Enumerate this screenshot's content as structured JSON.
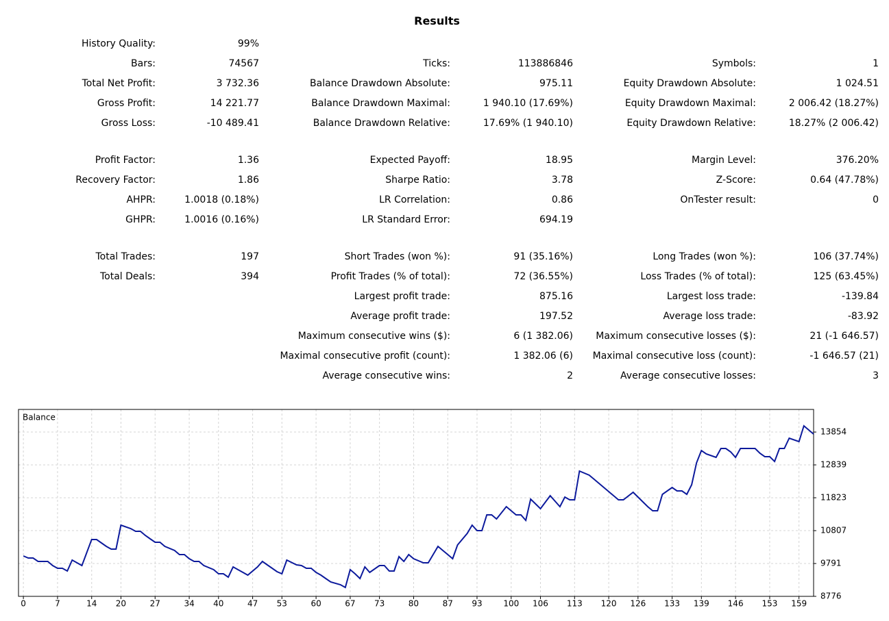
{
  "title": "Results",
  "stats": [
    [
      [
        {
          "label": "History Quality:",
          "value": "99%"
        },
        null,
        null
      ],
      [
        {
          "label": "Bars:",
          "value": "74567"
        },
        {
          "label": "Ticks:",
          "value": "113886846"
        },
        {
          "label": "Symbols:",
          "value": "1"
        }
      ],
      [
        {
          "label": "Total Net Profit:",
          "value": "3 732.36"
        },
        {
          "label": "Balance Drawdown Absolute:",
          "value": "975.11"
        },
        {
          "label": "Equity Drawdown Absolute:",
          "value": "1 024.51"
        }
      ],
      [
        {
          "label": "Gross Profit:",
          "value": "14 221.77"
        },
        {
          "label": "Balance Drawdown Maximal:",
          "value": "1 940.10 (17.69%)"
        },
        {
          "label": "Equity Drawdown Maximal:",
          "value": "2 006.42 (18.27%)"
        }
      ],
      [
        {
          "label": "Gross Loss:",
          "value": "-10 489.41"
        },
        {
          "label": "Balance Drawdown Relative:",
          "value": "17.69% (1 940.10)"
        },
        {
          "label": "Equity Drawdown Relative:",
          "value": "18.27% (2 006.42)"
        }
      ]
    ],
    [
      [
        {
          "label": "Profit Factor:",
          "value": "1.36"
        },
        {
          "label": "Expected Payoff:",
          "value": "18.95"
        },
        {
          "label": "Margin Level:",
          "value": "376.20%"
        }
      ],
      [
        {
          "label": "Recovery Factor:",
          "value": "1.86"
        },
        {
          "label": "Sharpe Ratio:",
          "value": "3.78"
        },
        {
          "label": "Z-Score:",
          "value": "0.64 (47.78%)"
        }
      ],
      [
        {
          "label": "AHPR:",
          "value": "1.0018 (0.18%)"
        },
        {
          "label": "LR Correlation:",
          "value": "0.86"
        },
        {
          "label": "OnTester result:",
          "value": "0"
        }
      ],
      [
        {
          "label": "GHPR:",
          "value": "1.0016 (0.16%)"
        },
        {
          "label": "LR Standard Error:",
          "value": "694.19"
        },
        null
      ]
    ],
    [
      [
        {
          "label": "Total Trades:",
          "value": "197"
        },
        {
          "label": "Short Trades (won %):",
          "value": "91 (35.16%)"
        },
        {
          "label": "Long Trades (won %):",
          "value": "106 (37.74%)"
        }
      ],
      [
        {
          "label": "Total Deals:",
          "value": "394"
        },
        {
          "label": "Profit Trades (% of total):",
          "value": "72 (36.55%)"
        },
        {
          "label": "Loss Trades (% of total):",
          "value": "125 (63.45%)"
        }
      ],
      [
        null,
        {
          "label": "Largest profit trade:",
          "value": "875.16"
        },
        {
          "label": "Largest loss trade:",
          "value": "-139.84"
        }
      ],
      [
        null,
        {
          "label": "Average profit trade:",
          "value": "197.52"
        },
        {
          "label": "Average loss trade:",
          "value": "-83.92"
        }
      ],
      [
        null,
        {
          "label": "Maximum consecutive wins ($):",
          "value": "6 (1 382.06)"
        },
        {
          "label": "Maximum consecutive losses ($):",
          "value": "21 (-1 646.57)"
        }
      ],
      [
        null,
        {
          "label": "Maximal consecutive profit (count):",
          "value": "1 382.06 (6)"
        },
        {
          "label": "Maximal consecutive loss (count):",
          "value": "-1 646.57 (21)"
        }
      ],
      [
        null,
        {
          "label": "Average consecutive wins:",
          "value": "2"
        },
        {
          "label": "Average consecutive losses:",
          "value": "3"
        }
      ]
    ]
  ],
  "chart_data": {
    "type": "line",
    "x": [
      0,
      1,
      2,
      3,
      5,
      6,
      7,
      8,
      9,
      10,
      11,
      12,
      14,
      15,
      16,
      17,
      18,
      19,
      20,
      22,
      23,
      24,
      25,
      26,
      27,
      28,
      29,
      31,
      32,
      33,
      34,
      35,
      36,
      37,
      39,
      40,
      41,
      42,
      43,
      44,
      45,
      46,
      48,
      49,
      50,
      51,
      52,
      53,
      54,
      56,
      57,
      58,
      59,
      60,
      61,
      62,
      63,
      65,
      66,
      67,
      68,
      69,
      70,
      71,
      73,
      74,
      75,
      76,
      77,
      78,
      79,
      80,
      82,
      83,
      84,
      85,
      86,
      87,
      88,
      89,
      91,
      92,
      93,
      94,
      95,
      96,
      97,
      99,
      100,
      101,
      102,
      103,
      104,
      105,
      106,
      108,
      109,
      110,
      111,
      112,
      113,
      114,
      116,
      117,
      118,
      119,
      120,
      121,
      122,
      123,
      125,
      126,
      127,
      128,
      129,
      130,
      131,
      133,
      134,
      135,
      136,
      137,
      138,
      139,
      140,
      142,
      143,
      144,
      145,
      146,
      147,
      148,
      150,
      151,
      152,
      153,
      154,
      155,
      156,
      157,
      159,
      160,
      161,
      162
    ],
    "series": [
      {
        "name": "Balance",
        "color": "#0c1a9c",
        "values": [
          10024,
          9961,
          9961,
          9855,
          9855,
          9728,
          9644,
          9644,
          9559,
          9897,
          9813,
          9728,
          10532,
          10532,
          10426,
          10321,
          10236,
          10236,
          10977,
          10871,
          10786,
          10786,
          10659,
          10553,
          10448,
          10448,
          10321,
          10194,
          10067,
          10067,
          9940,
          9855,
          9855,
          9728,
          9601,
          9474,
          9474,
          9368,
          9686,
          9601,
          9517,
          9432,
          9686,
          9855,
          9749,
          9644,
          9538,
          9474,
          9897,
          9749,
          9728,
          9644,
          9644,
          9517,
          9432,
          9326,
          9220,
          9136,
          9051,
          9601,
          9474,
          9326,
          9686,
          9517,
          9728,
          9728,
          9559,
          9559,
          10003,
          9855,
          10067,
          9940,
          9813,
          9813,
          10067,
          10321,
          10194,
          10067,
          9940,
          10363,
          10723,
          10977,
          10807,
          10807,
          11294,
          11294,
          11167,
          11548,
          11421,
          11294,
          11294,
          11125,
          11781,
          11633,
          11484,
          11886,
          11717,
          11548,
          11844,
          11760,
          11760,
          12648,
          12521,
          12394,
          12267,
          12140,
          12013,
          11886,
          11760,
          11760,
          11992,
          11844,
          11696,
          11548,
          11421,
          11421,
          11929,
          12140,
          12035,
          12035,
          11929,
          12225,
          12902,
          13283,
          13177,
          13071,
          13346,
          13346,
          13241,
          13071,
          13346,
          13346,
          13346,
          13198,
          13092,
          13092,
          12944,
          13346,
          13346,
          13664,
          13558,
          14045,
          13918,
          13791
        ]
      }
    ],
    "xlim": [
      -1,
      162
    ],
    "ylim": [
      8776,
      14553
    ],
    "xticks": [
      0,
      7,
      14,
      20,
      27,
      34,
      40,
      47,
      53,
      60,
      67,
      73,
      80,
      87,
      93,
      100,
      106,
      113,
      120,
      126,
      133,
      139,
      146,
      153,
      159
    ],
    "yticks": [
      8776,
      9791,
      10807,
      11823,
      12839,
      13854
    ],
    "grid": true
  }
}
